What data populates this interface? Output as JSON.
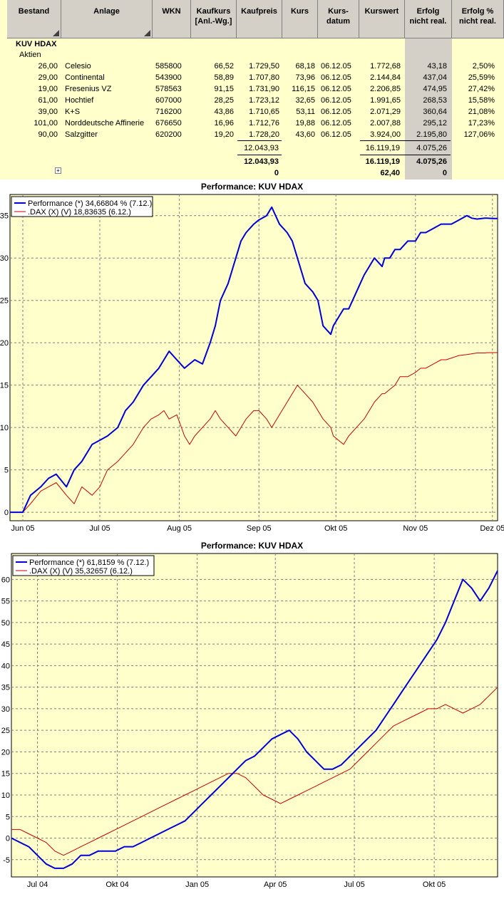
{
  "table": {
    "headers": [
      {
        "label": "Bestand"
      },
      {
        "label": "Anlage"
      },
      {
        "label": "WKN"
      },
      {
        "label": "Kaufkurs\n[Anl.-Wg.]"
      },
      {
        "label": "Kaufpreis"
      },
      {
        "label": "Kurs"
      },
      {
        "label": "Kurs-\ndatum"
      },
      {
        "label": "Kurswert"
      },
      {
        "label": "Erfolg\nnicht real."
      },
      {
        "label": "Erfolg %\nnicht real."
      }
    ],
    "group": "KUV HDAX",
    "subgroup": "Aktien",
    "rows": [
      [
        "26,00",
        "Celesio",
        "585800",
        "66,52",
        "1.729,50",
        "68,18",
        "06.12.05",
        "1.772,68",
        "43,18",
        "2,50%"
      ],
      [
        "29,00",
        "Continental",
        "543900",
        "58,89",
        "1.707,80",
        "73,96",
        "06.12.05",
        "2.144,84",
        "437,04",
        "25,59%"
      ],
      [
        "19,00",
        "Fresenius VZ",
        "578563",
        "91,15",
        "1.731,90",
        "116,15",
        "06.12.05",
        "2.206,85",
        "474,95",
        "27,42%"
      ],
      [
        "61,00",
        "Hochtief",
        "607000",
        "28,25",
        "1.723,12",
        "32,65",
        "06.12.05",
        "1.991,65",
        "268,53",
        "15,58%"
      ],
      [
        "39,00",
        "K+S",
        "716200",
        "43,86",
        "1.710,65",
        "53,11",
        "06.12.05",
        "2.071,29",
        "360,64",
        "21,08%"
      ],
      [
        "101,00",
        "Norddeutsche Affinerie",
        "676650",
        "16,96",
        "1.712,76",
        "19,88",
        "06.12.05",
        "2.007,88",
        "295,12",
        "17,23%"
      ],
      [
        "90,00",
        "Salzgitter",
        "620200",
        "19,20",
        "1.728,20",
        "43,60",
        "06.12.05",
        "3.924,00",
        "2.195,80",
        "127,06%"
      ]
    ],
    "subtotal": {
      "kaufpreis": "12.043,93",
      "kurswert": "16.119,19",
      "erfolg": "4.075,26"
    },
    "total": {
      "kaufpreis": "12.043,93",
      "kurswert": "16.119,19",
      "erfolg": "4.075,26"
    },
    "extra": {
      "kaufpreis": "0",
      "kurswert": "62,40",
      "erfolg": "0"
    },
    "expand_symbol": "+"
  },
  "chart_data": [
    {
      "type": "line",
      "title": "Performance: KUV HDAX",
      "legend_position": "top-left",
      "grid": true,
      "ylim": [
        -1,
        37.5
      ],
      "yticks": [
        0,
        5,
        10,
        15,
        20,
        25,
        30,
        35
      ],
      "xlim": [
        0,
        190
      ],
      "xticks": [
        {
          "label": "Jun 05",
          "x": 5
        },
        {
          "label": "Jul 05",
          "x": 35
        },
        {
          "label": "Aug 05",
          "x": 66
        },
        {
          "label": "Sep 05",
          "x": 97
        },
        {
          "label": "Okt 05",
          "x": 127
        },
        {
          "label": "Nov 05",
          "x": 158
        },
        {
          "label": "Dez 05",
          "x": 188
        }
      ],
      "series": [
        {
          "name": "Performance (*) 34,66804 % (7.12.)",
          "color": "#0000dd",
          "width": 2,
          "x": [
            0,
            5,
            8,
            12,
            15,
            18,
            22,
            25,
            28,
            32,
            35,
            38,
            42,
            45,
            48,
            50,
            52,
            55,
            58,
            60,
            62,
            65,
            68,
            70,
            72,
            75,
            78,
            80,
            82,
            85,
            88,
            90,
            92,
            95,
            97,
            100,
            102,
            105,
            108,
            110,
            112,
            115,
            118,
            120,
            122,
            125,
            126,
            128,
            130,
            132,
            135,
            138,
            140,
            142,
            145,
            146,
            148,
            150,
            152,
            155,
            158,
            160,
            162,
            165,
            168,
            170,
            172,
            175,
            178,
            180,
            182,
            185,
            186,
            188,
            190
          ],
          "y": [
            0,
            0,
            2,
            3,
            4,
            4.5,
            3,
            5,
            6,
            8,
            8.5,
            9,
            10,
            12,
            13,
            14,
            15,
            16,
            17,
            18,
            19,
            18,
            17,
            17.5,
            18,
            17.5,
            20,
            22,
            25,
            27,
            30,
            32,
            33,
            34,
            34.5,
            35,
            36,
            34,
            33,
            32,
            30,
            27,
            26,
            25,
            22,
            21,
            22,
            23,
            24,
            24,
            26,
            28,
            29,
            30,
            29,
            30,
            30,
            31,
            31,
            32,
            32,
            33,
            33,
            33.5,
            34,
            34,
            34,
            34.5,
            35,
            34.7,
            34.6,
            34.7,
            34.7,
            34.66,
            34.67
          ]
        },
        {
          "name": ".DAX (X) (V) 18,83635 (6.12.)",
          "color": "#cc0000",
          "width": 1,
          "x": [
            0,
            5,
            8,
            12,
            15,
            18,
            22,
            25,
            28,
            32,
            35,
            38,
            42,
            45,
            48,
            50,
            52,
            55,
            58,
            60,
            62,
            65,
            68,
            70,
            72,
            75,
            78,
            80,
            82,
            85,
            88,
            90,
            92,
            95,
            97,
            100,
            102,
            105,
            108,
            110,
            112,
            115,
            118,
            120,
            122,
            125,
            126,
            128,
            130,
            132,
            135,
            138,
            140,
            142,
            145,
            146,
            148,
            150,
            152,
            155,
            158,
            160,
            162,
            165,
            168,
            170,
            172,
            175,
            178,
            180,
            182,
            185,
            186,
            188,
            190
          ],
          "y": [
            0,
            0,
            1,
            2.5,
            3,
            3.5,
            2,
            1,
            3,
            2,
            3,
            5,
            6,
            7,
            8,
            9,
            10,
            11,
            11.5,
            12,
            11,
            11.5,
            9,
            8,
            9,
            10,
            11,
            12,
            11,
            10,
            9,
            10,
            11,
            12,
            12,
            11,
            10,
            11.5,
            13,
            14,
            15,
            14,
            13,
            12,
            11,
            10,
            9,
            8.5,
            8,
            9,
            10,
            11,
            12,
            13,
            14,
            14,
            14.5,
            15,
            16,
            16,
            16.5,
            17,
            17,
            17.5,
            18,
            18,
            18.2,
            18.5,
            18.6,
            18.7,
            18.8,
            18.8,
            18.83,
            18.84,
            18.84
          ]
        }
      ]
    },
    {
      "type": "line",
      "title": "Performance: KUV HDAX",
      "legend_position": "top-left",
      "grid": true,
      "ylim": [
        -9,
        66
      ],
      "yticks": [
        -5,
        0,
        5,
        10,
        15,
        20,
        25,
        30,
        35,
        40,
        45,
        50,
        55,
        60
      ],
      "xlim": [
        0,
        560
      ],
      "xticks": [
        {
          "label": "Jul 04",
          "x": 30
        },
        {
          "label": "Okt 04",
          "x": 122
        },
        {
          "label": "Jan 05",
          "x": 214
        },
        {
          "label": "Apr 05",
          "x": 304
        },
        {
          "label": "Jul 05",
          "x": 395
        },
        {
          "label": "Okt 05",
          "x": 487
        }
      ],
      "series": [
        {
          "name": "Performance (*) 61,8159 % (7.12.)",
          "color": "#0000dd",
          "width": 2,
          "x": [
            0,
            10,
            20,
            30,
            40,
            50,
            60,
            70,
            80,
            90,
            100,
            110,
            120,
            130,
            140,
            150,
            160,
            170,
            180,
            190,
            200,
            210,
            220,
            230,
            240,
            250,
            260,
            270,
            280,
            290,
            300,
            310,
            320,
            330,
            340,
            350,
            360,
            370,
            380,
            390,
            400,
            410,
            420,
            430,
            440,
            450,
            460,
            470,
            480,
            490,
            500,
            510,
            520,
            530,
            540,
            550,
            560
          ],
          "y": [
            0,
            -1,
            -2,
            -4,
            -6,
            -7,
            -7,
            -6,
            -4,
            -4,
            -3,
            -3,
            -3,
            -2,
            -2,
            -1,
            0,
            1,
            2,
            3,
            4,
            6,
            8,
            10,
            12,
            14,
            16,
            18,
            19,
            21,
            23,
            24,
            25,
            23,
            20,
            18,
            16,
            16,
            17,
            19,
            21,
            23,
            25,
            28,
            31,
            34,
            37,
            40,
            43,
            46,
            50,
            55,
            60,
            58,
            55,
            58,
            62
          ]
        },
        {
          "name": ".DAX (X) (V) 35,32657 (6.12.)",
          "color": "#cc0000",
          "width": 1,
          "x": [
            0,
            10,
            20,
            30,
            40,
            50,
            60,
            70,
            80,
            90,
            100,
            110,
            120,
            130,
            140,
            150,
            160,
            170,
            180,
            190,
            200,
            210,
            220,
            230,
            240,
            250,
            260,
            270,
            280,
            290,
            300,
            310,
            320,
            330,
            340,
            350,
            360,
            370,
            380,
            390,
            400,
            410,
            420,
            430,
            440,
            450,
            460,
            470,
            480,
            490,
            500,
            510,
            520,
            530,
            540,
            550,
            560
          ],
          "y": [
            2,
            2,
            1,
            0,
            -1,
            -3,
            -4,
            -3,
            -2,
            -1,
            0,
            1,
            2,
            3,
            4,
            5,
            6,
            7,
            8,
            9,
            10,
            11,
            12,
            13,
            14,
            15,
            15,
            14,
            12,
            10,
            9,
            8,
            9,
            10,
            11,
            12,
            13,
            14,
            15,
            16,
            18,
            20,
            22,
            24,
            26,
            27,
            28,
            29,
            30,
            30,
            31,
            30,
            29,
            30,
            31,
            33,
            35
          ]
        }
      ]
    }
  ]
}
